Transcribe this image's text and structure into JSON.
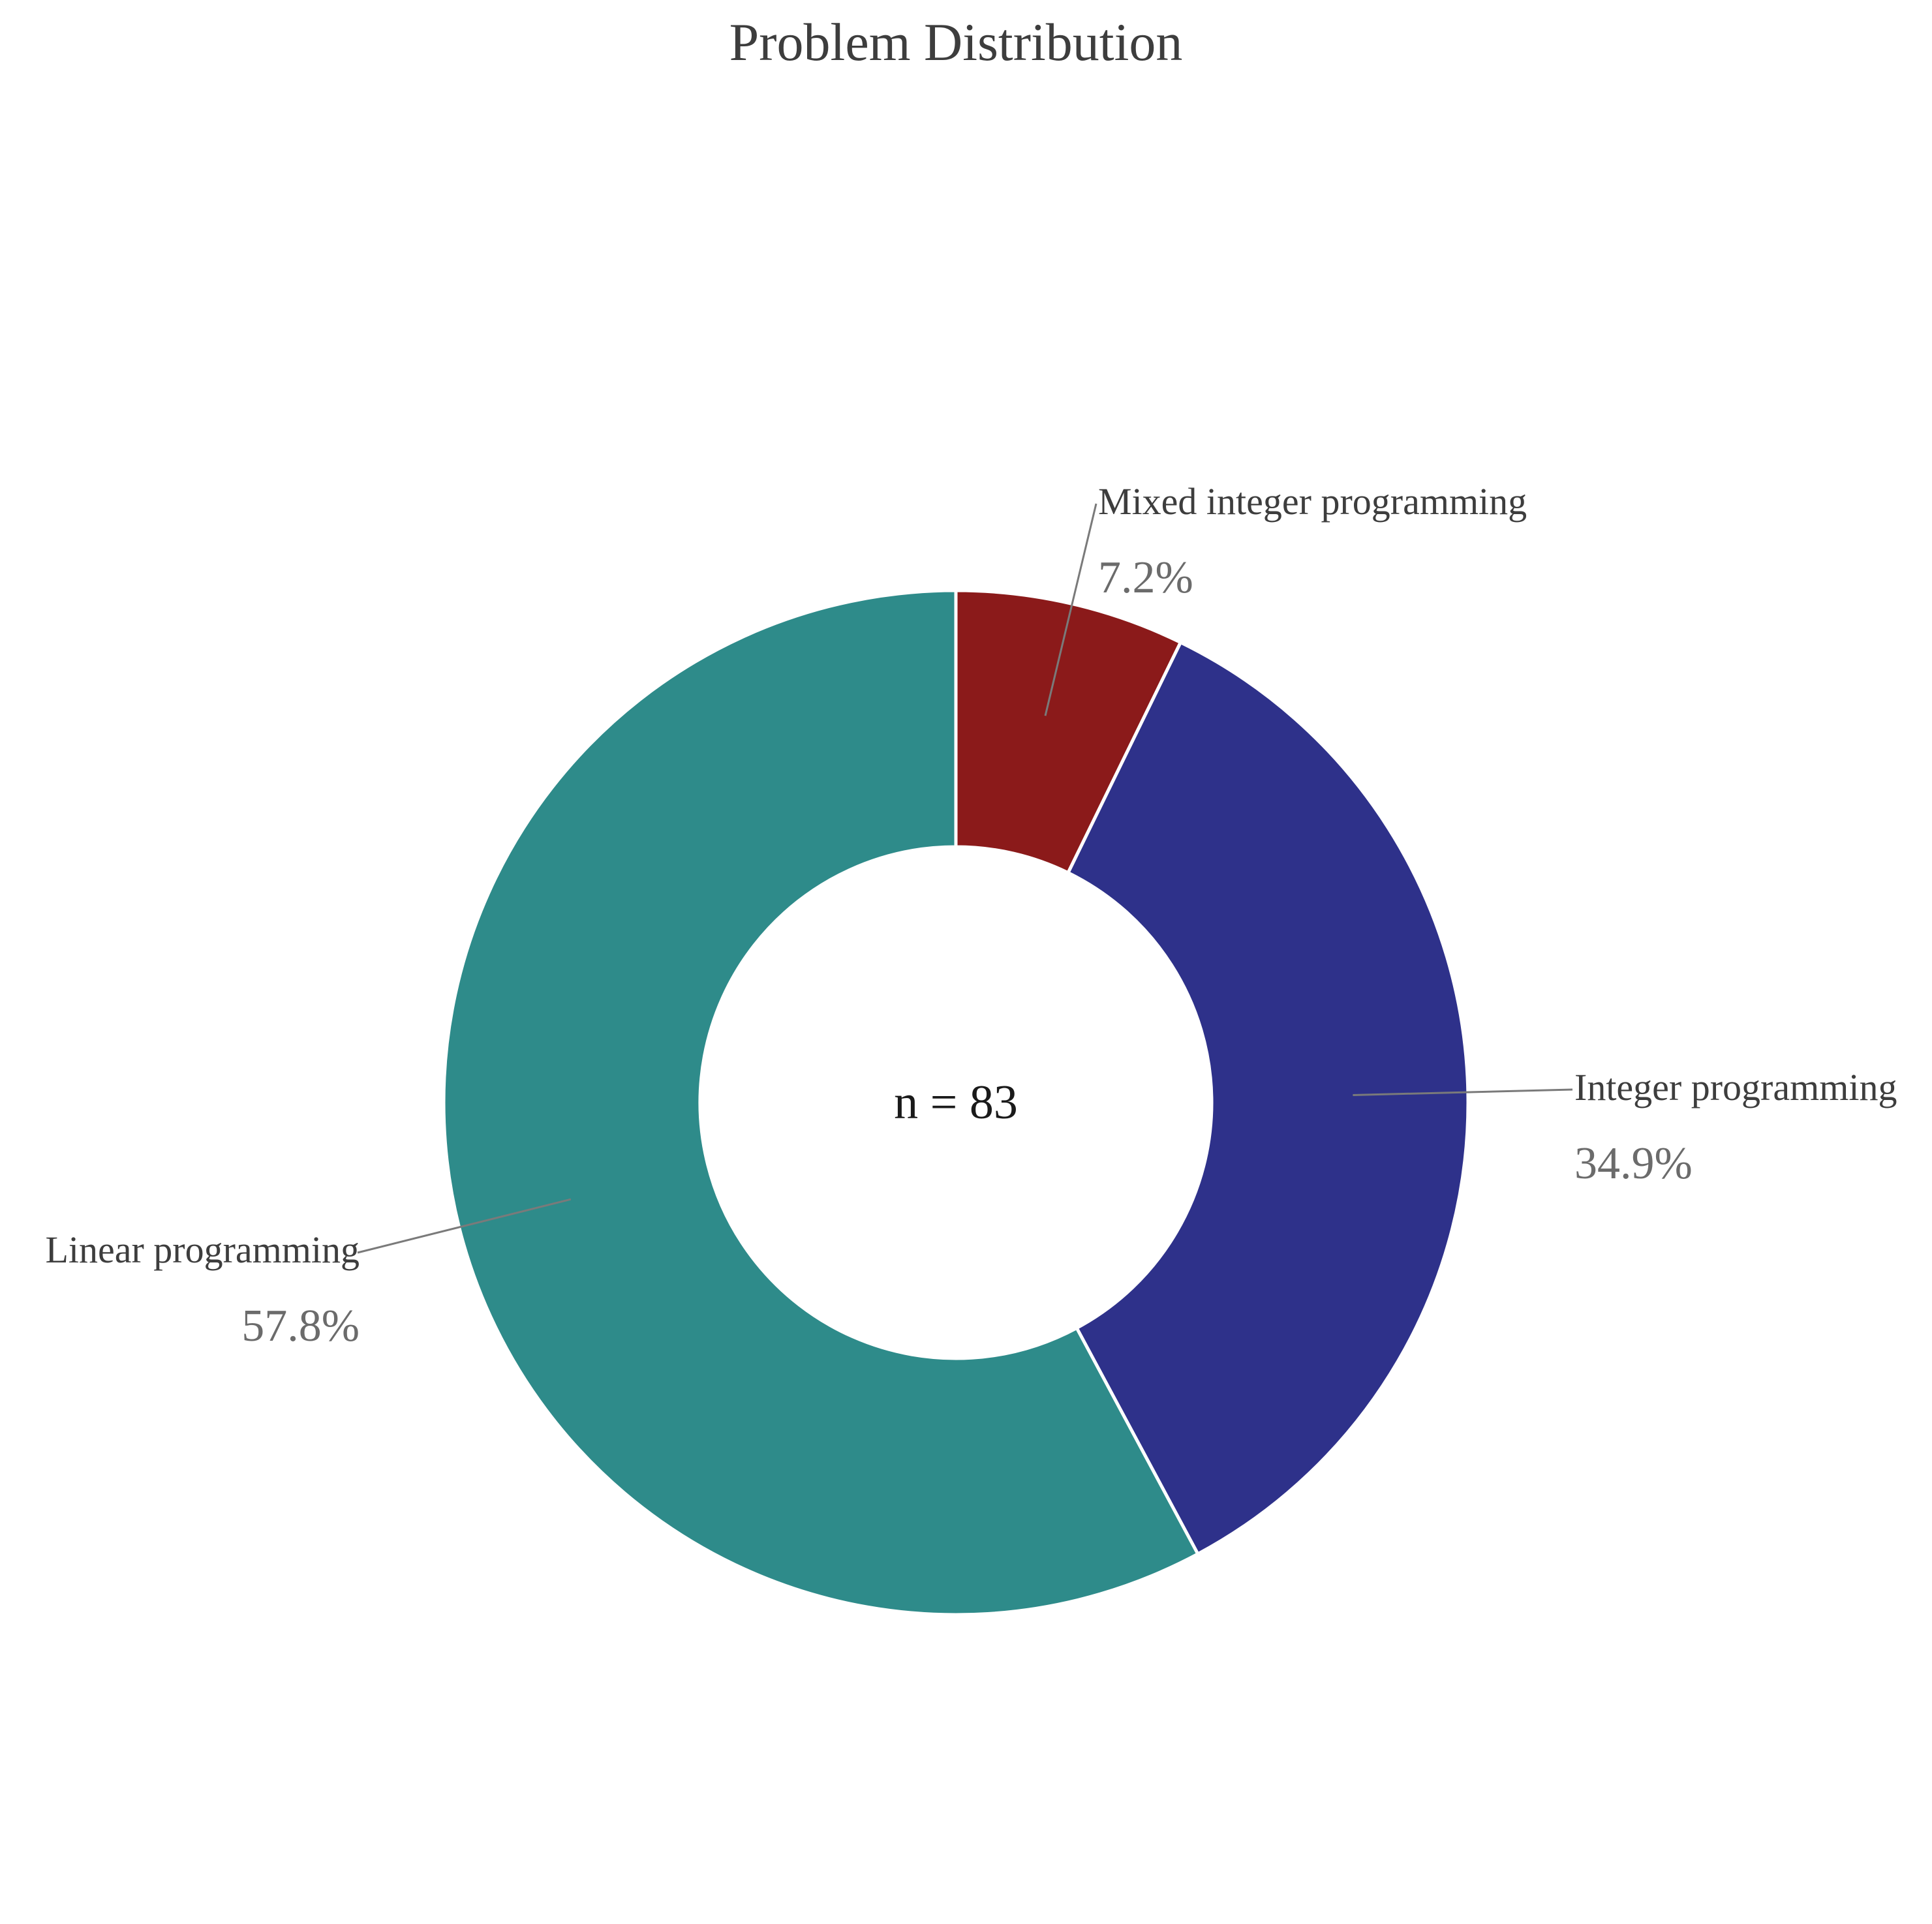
{
  "chart_data": {
    "type": "pie",
    "style": "donut",
    "title": "Problem Distribution",
    "center_text": "n = 83",
    "total": 83,
    "start": "top",
    "direction": "clockwise",
    "slices": [
      {
        "label": "Mixed integer programming",
        "value": 6,
        "percent_label": "7.2%",
        "color": "#8b1a1a"
      },
      {
        "label": "Integer programming",
        "value": 29,
        "percent_label": "34.9%",
        "color": "#2e318a"
      },
      {
        "label": "Linear programming",
        "value": 48,
        "percent_label": "57.8%",
        "color": "#2e8b8a"
      }
    ]
  }
}
